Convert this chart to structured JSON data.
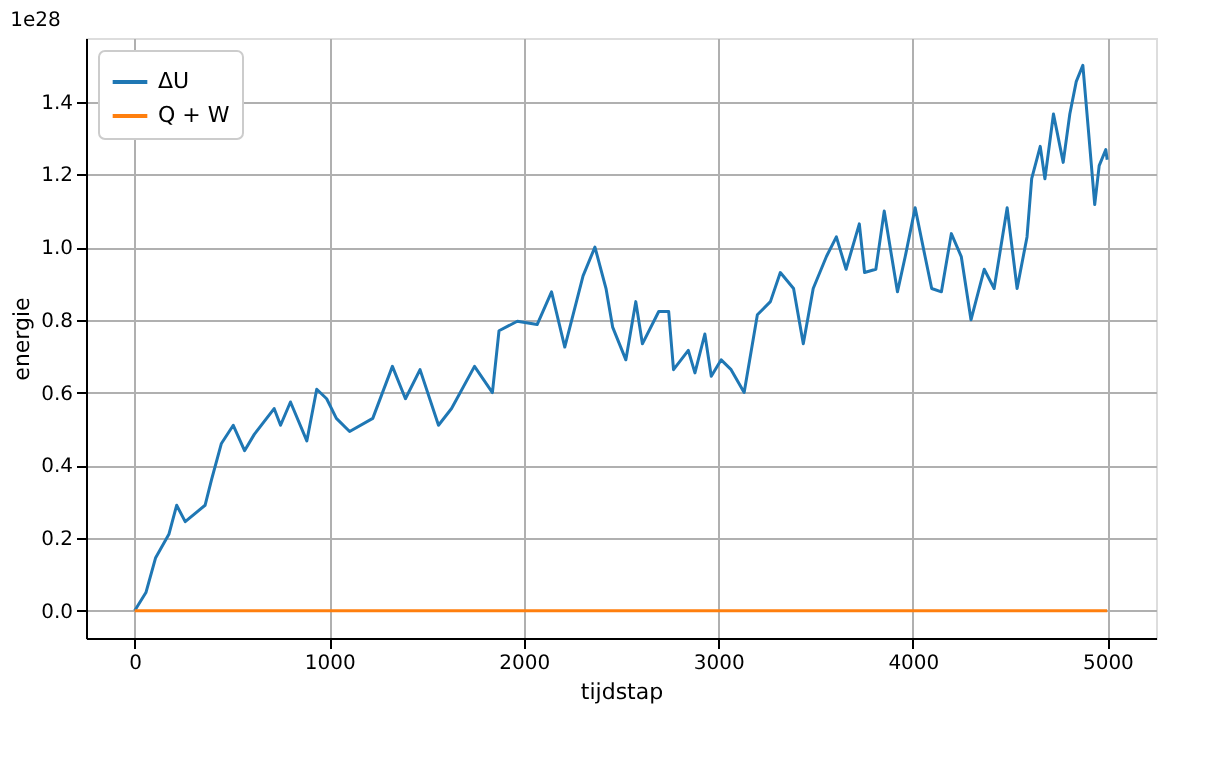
{
  "chart_data": {
    "type": "line",
    "xlabel": "tijdstap",
    "ylabel": "energie",
    "annotations": [
      "1e28"
    ],
    "xlim": [
      -250,
      5250
    ],
    "xticks": [
      0,
      1000,
      2000,
      3000,
      4000,
      5000
    ],
    "ylim": [
      -0.075,
      1.575
    ],
    "yticks": [
      {
        "value": 0,
        "label": "0.0"
      },
      {
        "value": 0.2,
        "label": "0.2"
      },
      {
        "value": 0.4,
        "label": "0.4"
      },
      {
        "value": 0.6,
        "label": "0.6"
      },
      {
        "value": 0.8,
        "label": "0.8"
      },
      {
        "value": 1.0,
        "label": "1.0"
      },
      {
        "value": 1.2,
        "label": "1.2"
      },
      {
        "value": 1.4,
        "label": "1.4"
      }
    ],
    "grid": true,
    "legend": "top left",
    "marker": "none",
    "line_style": "solid",
    "series": [
      {
        "name": "ΔU",
        "color": "#1f77b4",
        "x": [
          0,
          58,
          108,
          176,
          216,
          260,
          362,
          395,
          446,
          507,
          565,
          615,
          717,
          750,
          801,
          885,
          936,
          987,
          1037,
          1105,
          1224,
          1325,
          1392,
          1467,
          1562,
          1629,
          1747,
          1839,
          1873,
          1967,
          2069,
          2143,
          2211,
          2305,
          2366,
          2423,
          2457,
          2525,
          2576,
          2610,
          2694,
          2745,
          2770,
          2846,
          2880,
          2931,
          2964,
          3015,
          3066,
          3133,
          3201,
          3268,
          3319,
          3387,
          3437,
          3488,
          3556,
          3607,
          3657,
          3725,
          3752,
          3810,
          3853,
          3921,
          3961,
          4012,
          4063,
          4097,
          4147,
          4198,
          4249,
          4299,
          4367,
          4418,
          4485,
          4536,
          4587,
          4611,
          4655,
          4679,
          4723,
          4773,
          4807,
          4840,
          4874,
          4901,
          4935,
          4958,
          4992,
          4999
        ],
        "values": [
          0.0,
          0.05,
          0.146,
          0.21,
          0.29,
          0.245,
          0.29,
          0.36,
          0.46,
          0.51,
          0.44,
          0.485,
          0.556,
          0.51,
          0.574,
          0.467,
          0.609,
          0.583,
          0.529,
          0.493,
          0.529,
          0.672,
          0.583,
          0.663,
          0.51,
          0.556,
          0.672,
          0.6,
          0.77,
          0.796,
          0.787,
          0.877,
          0.725,
          0.921,
          1.0,
          0.886,
          0.78,
          0.69,
          0.85,
          0.734,
          0.823,
          0.823,
          0.663,
          0.716,
          0.654,
          0.761,
          0.645,
          0.69,
          0.663,
          0.6,
          0.814,
          0.85,
          0.93,
          0.886,
          0.734,
          0.886,
          0.974,
          1.028,
          0.939,
          1.064,
          0.93,
          0.939,
          1.099,
          0.877,
          0.974,
          1.108,
          0.974,
          0.886,
          0.877,
          1.037,
          0.974,
          0.8,
          0.939,
          0.886,
          1.108,
          0.886,
          1.028,
          1.188,
          1.277,
          1.188,
          1.366,
          1.233,
          1.366,
          1.455,
          1.5,
          1.331,
          1.117,
          1.224,
          1.268,
          1.24
        ]
      },
      {
        "name": "Q + W",
        "color": "#ff7f0e",
        "x": [
          0,
          4999
        ],
        "values": [
          0,
          0
        ]
      }
    ]
  }
}
